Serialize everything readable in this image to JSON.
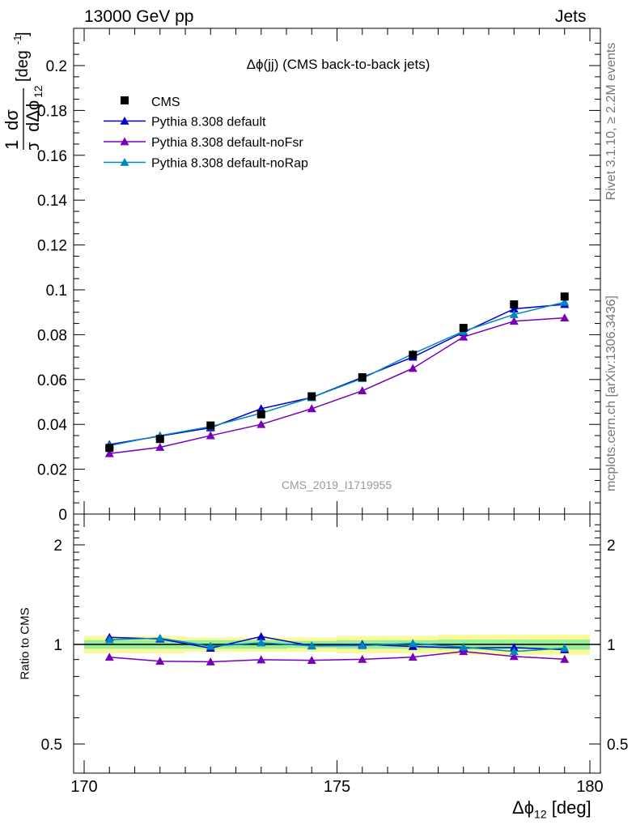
{
  "header": {
    "left": "13000 GeV pp",
    "right": "Jets"
  },
  "side_labels": {
    "rivet": "Rivet 3.1.10, ≥ 2.2M events",
    "mcplots": "mcplots.cern.ch [arXiv:1306.3436]"
  },
  "chart_data": {
    "type": "line",
    "title": "Δϕ(jj) (CMS back-to-back jets)",
    "watermark": "CMS_2019_I1719955",
    "xlabel": "Δϕ",
    "xlabel_sub": "12",
    "xlabel_unit": "[deg]",
    "ylabel": "1/σ dσ/dΔϕ₁₂ [deg⁻¹]",
    "ratio_ylabel": "Ratio to CMS",
    "xlim": [
      170,
      180
    ],
    "ylim": [
      0,
      0.215
    ],
    "ratio_ylim": [
      0.37,
      2.35
    ],
    "ratio_scale": "log",
    "x_ticks": [
      "170",
      "175",
      "180"
    ],
    "y_ticks": [
      "0",
      "0.02",
      "0.04",
      "0.06",
      "0.08",
      "0.1",
      "0.12",
      "0.14",
      "0.16",
      "0.18",
      "0.2"
    ],
    "ratio_ticks": [
      "0.5",
      "1",
      "2"
    ],
    "legend_position": "top-left",
    "x": [
      170.5,
      171.5,
      172.5,
      173.5,
      174.5,
      175.5,
      176.5,
      177.5,
      178.5,
      179.5
    ],
    "data": {
      "name": "CMS",
      "color": "#000000",
      "values": [
        0.0295,
        0.0335,
        0.0395,
        0.0445,
        0.0525,
        0.061,
        0.071,
        0.083,
        0.0935,
        0.097
      ]
    },
    "series": [
      {
        "name": "Pythia 8.308 default",
        "color": "#0000cc",
        "values": [
          0.031,
          0.0348,
          0.0385,
          0.047,
          0.052,
          0.061,
          0.07,
          0.081,
          0.0915,
          0.0935
        ]
      },
      {
        "name": "Pythia 8.308 default-noFsr",
        "color": "#7700bb",
        "values": [
          0.027,
          0.0298,
          0.035,
          0.04,
          0.047,
          0.055,
          0.065,
          0.079,
          0.086,
          0.0875
        ]
      },
      {
        "name": "Pythia 8.308 default-noRap",
        "color": "#0088bb",
        "values": [
          0.0305,
          0.035,
          0.039,
          0.045,
          0.052,
          0.0605,
          0.0715,
          0.0815,
          0.089,
          0.0945
        ]
      }
    ],
    "ratio_band_outer": [
      0.06,
      0.06,
      0.05,
      0.05,
      0.05,
      0.06,
      0.06,
      0.07,
      0.07,
      0.07
    ],
    "ratio_band_inner": [
      0.03,
      0.03,
      0.03,
      0.03,
      0.025,
      0.03,
      0.03,
      0.035,
      0.035,
      0.035
    ],
    "band_colors": {
      "outer": "#fafa9a",
      "inner": "#99ee99"
    }
  }
}
